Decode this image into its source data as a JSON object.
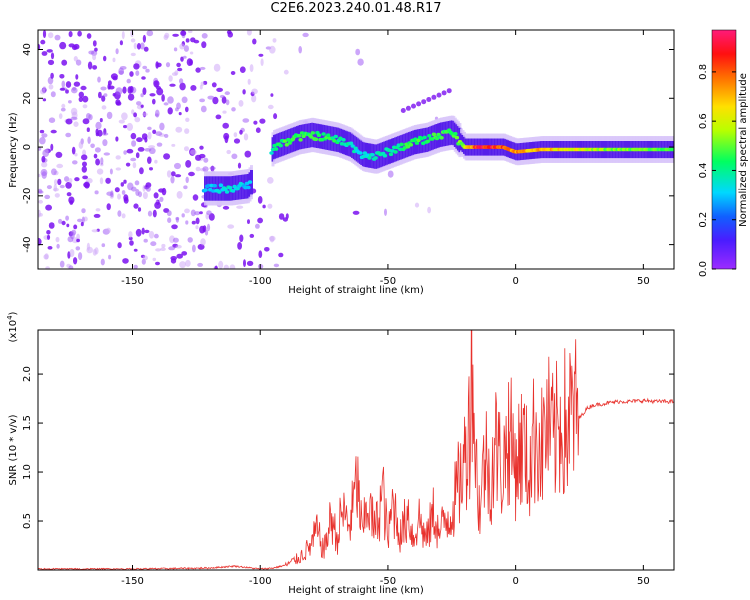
{
  "title": "C2E6.2023.240.01.48.R17",
  "colorbar": {
    "label": "Normalized spectral amplitude",
    "ticks": [
      "0.0",
      "0.2",
      "0.4",
      "0.6",
      "0.8"
    ],
    "tick_values": [
      0.0,
      0.2,
      0.4,
      0.6,
      0.8
    ],
    "range": [
      0,
      0.97
    ],
    "colormap": "rainbow (magenta-blue-cyan-green-yellow-red-pink)"
  },
  "colors": {
    "snr_line": "#e8312c",
    "spectrogram_low": "#7b1cff",
    "spectrogram_high": "#ff2020"
  },
  "chart_data": [
    {
      "type": "heatmap",
      "name": "spectrogram",
      "xlabel": "Height of straight line (km)",
      "ylabel": "Frequency (Hz)",
      "xlim": [
        -187,
        62
      ],
      "ylim": [
        -50,
        48
      ],
      "xticks": [
        "-150",
        "-100",
        "-50",
        "0",
        "50"
      ],
      "xtick_values": [
        -150,
        -100,
        -50,
        0,
        50
      ],
      "yticks": [
        "-40",
        "-20",
        "0",
        "20",
        "40"
      ],
      "ytick_values": [
        -40,
        -20,
        0,
        20,
        40
      ],
      "signal_trace": {
        "x": [
          -120,
          -112,
          -105,
          -95,
          -90,
          -85,
          -80,
          -75,
          -70,
          -65,
          -60,
          -55,
          -50,
          -45,
          -40,
          -35,
          -30,
          -25,
          -20,
          -15,
          -10,
          -5,
          0,
          10,
          20,
          30,
          40,
          50,
          62
        ],
        "frequency": [
          -17,
          -17,
          -16,
          0,
          2,
          4,
          5,
          4,
          3,
          1,
          -3,
          -4,
          -2,
          0,
          2,
          3,
          5,
          6,
          0,
          0,
          0,
          0,
          -2,
          -1,
          -1,
          -1,
          -1,
          -1,
          -1
        ],
        "amplitude": [
          0.3,
          0.4,
          0.3,
          0.4,
          0.5,
          0.5,
          0.5,
          0.5,
          0.45,
          0.4,
          0.35,
          0.4,
          0.4,
          0.45,
          0.5,
          0.5,
          0.5,
          0.5,
          0.6,
          0.95,
          0.95,
          0.9,
          0.8,
          0.75,
          0.7,
          0.6,
          0.55,
          0.55,
          0.5
        ]
      },
      "noise_region": {
        "x_range": [
          -187,
          -90
        ],
        "note": "scattered low-amplitude purple noise"
      }
    },
    {
      "type": "line",
      "name": "snr",
      "xlabel": "Height of straight line (km)",
      "ylabel": "SNR (10 * v/v)",
      "multiplier_label": "(x10",
      "multiplier_exp": "4",
      "multiplier_close": ")",
      "xlim": [
        -187,
        62
      ],
      "ylim": [
        0,
        2.45
      ],
      "xticks": [
        "-150",
        "-100",
        "-50",
        "0",
        "50"
      ],
      "xtick_values": [
        -150,
        -100,
        -50,
        0,
        50
      ],
      "yticks": [
        "0.5",
        "1.0",
        "1.5",
        "2.0"
      ],
      "ytick_values": [
        0.5,
        1.0,
        1.5,
        2.0
      ],
      "series": [
        {
          "x": [
            -187,
            -150,
            -120,
            -110,
            -100,
            -95,
            -90,
            -85,
            -80,
            -78,
            -75,
            -72,
            -70,
            -68,
            -65,
            -62,
            -60,
            -58,
            -55,
            -52,
            -50,
            -48,
            -45,
            -42,
            -40,
            -38,
            -35,
            -32,
            -30,
            -28,
            -25,
            -22,
            -20,
            -18,
            -17,
            -16,
            -15,
            -14,
            -12,
            -10,
            -8,
            -5,
            -3,
            0,
            3,
            5,
            8,
            10,
            12,
            15,
            18,
            20,
            22,
            25,
            28,
            30,
            35,
            40,
            45,
            50,
            55,
            62
          ],
          "y": [
            0.01,
            0.01,
            0.02,
            0.04,
            0.01,
            0.02,
            0.05,
            0.12,
            0.25,
            0.4,
            0.2,
            0.55,
            0.3,
            0.6,
            0.45,
            0.9,
            0.35,
            0.7,
            0.4,
            0.8,
            0.3,
            0.7,
            0.35,
            0.6,
            0.3,
            0.55,
            0.3,
            0.6,
            0.35,
            0.5,
            0.6,
            0.9,
            1.1,
            1.6,
            2.4,
            1.3,
            0.9,
            0.6,
            1.2,
            0.9,
            1.3,
            1.0,
            1.4,
            1.1,
            1.3,
            1.0,
            1.45,
            1.2,
            1.5,
            1.3,
            1.55,
            1.45,
            1.6,
            1.55,
            1.65,
            1.68,
            1.7,
            1.72,
            1.72,
            1.73,
            1.72,
            1.72
          ]
        }
      ]
    }
  ]
}
